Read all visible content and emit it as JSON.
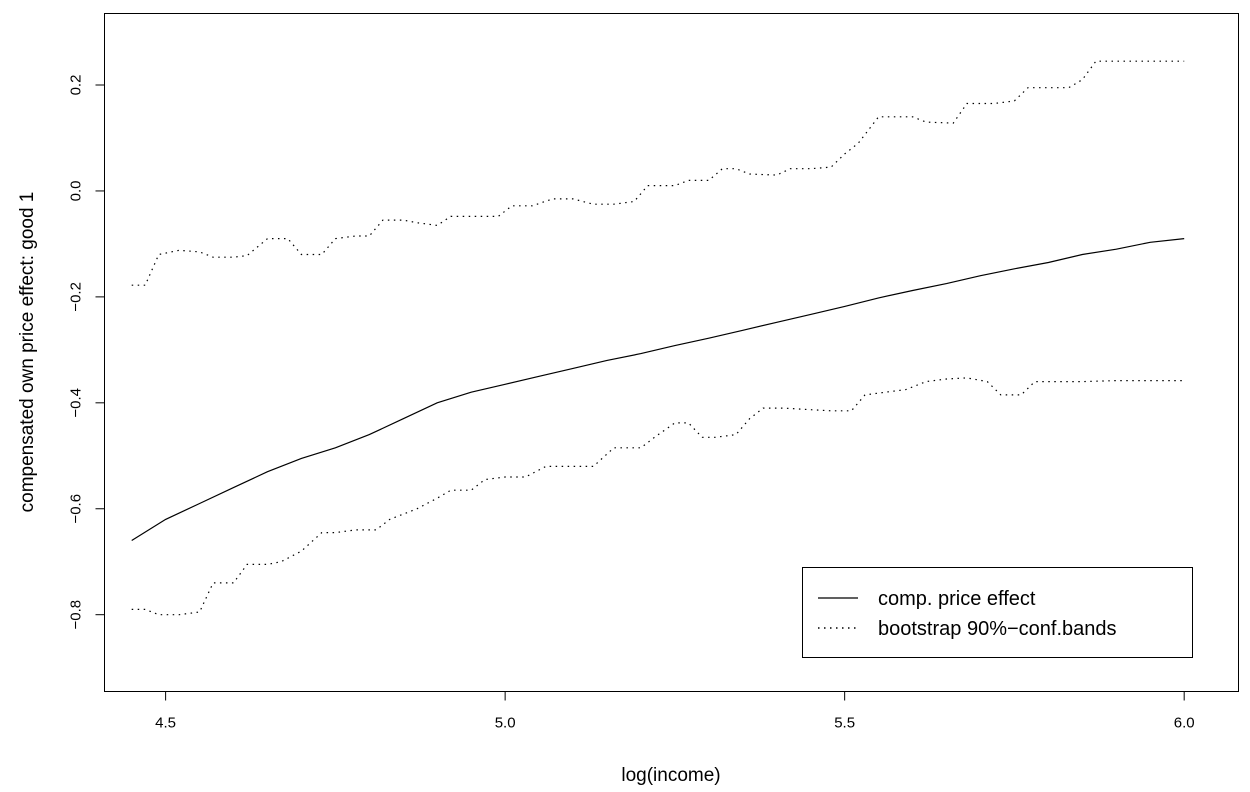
{
  "chart_data": {
    "type": "line",
    "title": "",
    "xlabel": "log(income)",
    "ylabel": "compensated own price effect: good 1",
    "xlim": [
      4.41,
      6.08
    ],
    "ylim": [
      -0.945,
      0.335
    ],
    "x_ticks": [
      4.5,
      5.0,
      5.5,
      6.0
    ],
    "x_tick_labels": [
      "4.5",
      "5.0",
      "5.5",
      "6.0"
    ],
    "y_ticks": [
      -0.8,
      -0.6,
      -0.4,
      -0.2,
      0.0,
      0.2
    ],
    "y_tick_labels": [
      "−0.8",
      "−0.6",
      "−0.4",
      "−0.2",
      "0.0",
      "0.2"
    ],
    "grid": false,
    "legend_position": "bottom-right",
    "series": [
      {
        "name": "comp. price effect",
        "style": "solid",
        "color": "#000000",
        "points": [
          [
            4.45,
            -0.66
          ],
          [
            4.5,
            -0.62
          ],
          [
            4.55,
            -0.59
          ],
          [
            4.6,
            -0.56
          ],
          [
            4.65,
            -0.53
          ],
          [
            4.7,
            -0.505
          ],
          [
            4.75,
            -0.485
          ],
          [
            4.8,
            -0.46
          ],
          [
            4.85,
            -0.43
          ],
          [
            4.9,
            -0.4
          ],
          [
            4.95,
            -0.38
          ],
          [
            5.0,
            -0.365
          ],
          [
            5.05,
            -0.35
          ],
          [
            5.1,
            -0.335
          ],
          [
            5.15,
            -0.32
          ],
          [
            5.2,
            -0.307
          ],
          [
            5.25,
            -0.292
          ],
          [
            5.3,
            -0.278
          ],
          [
            5.35,
            -0.263
          ],
          [
            5.4,
            -0.248
          ],
          [
            5.45,
            -0.233
          ],
          [
            5.5,
            -0.218
          ],
          [
            5.55,
            -0.202
          ],
          [
            5.6,
            -0.188
          ],
          [
            5.65,
            -0.175
          ],
          [
            5.7,
            -0.16
          ],
          [
            5.75,
            -0.147
          ],
          [
            5.8,
            -0.135
          ],
          [
            5.85,
            -0.12
          ],
          [
            5.9,
            -0.11
          ],
          [
            5.95,
            -0.097
          ],
          [
            6.0,
            -0.09
          ]
        ]
      },
      {
        "name": "bootstrap 90%−conf.bands",
        "style": "dotted",
        "color": "#000000",
        "points": [
          [
            4.45,
            -0.178
          ],
          [
            4.47,
            -0.178
          ],
          [
            4.49,
            -0.12
          ],
          [
            4.52,
            -0.112
          ],
          [
            4.55,
            -0.115
          ],
          [
            4.57,
            -0.125
          ],
          [
            4.6,
            -0.125
          ],
          [
            4.62,
            -0.122
          ],
          [
            4.65,
            -0.09
          ],
          [
            4.68,
            -0.09
          ],
          [
            4.7,
            -0.12
          ],
          [
            4.73,
            -0.12
          ],
          [
            4.75,
            -0.09
          ],
          [
            4.78,
            -0.085
          ],
          [
            4.8,
            -0.085
          ],
          [
            4.82,
            -0.055
          ],
          [
            4.85,
            -0.055
          ],
          [
            4.87,
            -0.06
          ],
          [
            4.9,
            -0.065
          ],
          [
            4.92,
            -0.048
          ],
          [
            4.95,
            -0.048
          ],
          [
            4.99,
            -0.048
          ],
          [
            5.01,
            -0.028
          ],
          [
            5.04,
            -0.028
          ],
          [
            5.07,
            -0.015
          ],
          [
            5.1,
            -0.015
          ],
          [
            5.13,
            -0.025
          ],
          [
            5.16,
            -0.025
          ],
          [
            5.19,
            -0.02
          ],
          [
            5.21,
            0.01
          ],
          [
            5.25,
            0.01
          ],
          [
            5.27,
            0.02
          ],
          [
            5.3,
            0.02
          ],
          [
            5.32,
            0.042
          ],
          [
            5.34,
            0.042
          ],
          [
            5.36,
            0.032
          ],
          [
            5.4,
            0.03
          ],
          [
            5.42,
            0.042
          ],
          [
            5.45,
            0.042
          ],
          [
            5.48,
            0.045
          ],
          [
            5.5,
            0.07
          ],
          [
            5.52,
            0.09
          ],
          [
            5.55,
            0.14
          ],
          [
            5.6,
            0.14
          ],
          [
            5.62,
            0.13
          ],
          [
            5.66,
            0.128
          ],
          [
            5.68,
            0.165
          ],
          [
            5.72,
            0.165
          ],
          [
            5.75,
            0.17
          ],
          [
            5.77,
            0.195
          ],
          [
            5.8,
            0.195
          ],
          [
            5.83,
            0.195
          ],
          [
            5.85,
            0.21
          ],
          [
            5.87,
            0.245
          ],
          [
            5.9,
            0.245
          ],
          [
            5.93,
            0.245
          ],
          [
            5.95,
            0.245
          ],
          [
            6.0,
            0.245
          ]
        ]
      },
      {
        "name": "",
        "style": "dotted",
        "color": "#000000",
        "points": [
          [
            4.45,
            -0.79
          ],
          [
            4.47,
            -0.79
          ],
          [
            4.49,
            -0.8
          ],
          [
            4.52,
            -0.8
          ],
          [
            4.55,
            -0.795
          ],
          [
            4.57,
            -0.74
          ],
          [
            4.6,
            -0.74
          ],
          [
            4.62,
            -0.705
          ],
          [
            4.65,
            -0.705
          ],
          [
            4.67,
            -0.7
          ],
          [
            4.7,
            -0.68
          ],
          [
            4.73,
            -0.645
          ],
          [
            4.75,
            -0.645
          ],
          [
            4.78,
            -0.64
          ],
          [
            4.81,
            -0.64
          ],
          [
            4.83,
            -0.62
          ],
          [
            4.85,
            -0.61
          ],
          [
            4.87,
            -0.6
          ],
          [
            4.9,
            -0.58
          ],
          [
            4.92,
            -0.565
          ],
          [
            4.95,
            -0.565
          ],
          [
            4.97,
            -0.545
          ],
          [
            5.0,
            -0.54
          ],
          [
            5.03,
            -0.54
          ],
          [
            5.06,
            -0.52
          ],
          [
            5.1,
            -0.52
          ],
          [
            5.13,
            -0.52
          ],
          [
            5.16,
            -0.485
          ],
          [
            5.2,
            -0.485
          ],
          [
            5.22,
            -0.465
          ],
          [
            5.25,
            -0.438
          ],
          [
            5.27,
            -0.438
          ],
          [
            5.29,
            -0.465
          ],
          [
            5.31,
            -0.465
          ],
          [
            5.34,
            -0.46
          ],
          [
            5.36,
            -0.43
          ],
          [
            5.38,
            -0.41
          ],
          [
            5.41,
            -0.41
          ],
          [
            5.45,
            -0.413
          ],
          [
            5.48,
            -0.415
          ],
          [
            5.51,
            -0.415
          ],
          [
            5.53,
            -0.385
          ],
          [
            5.56,
            -0.38
          ],
          [
            5.59,
            -0.375
          ],
          [
            5.62,
            -0.36
          ],
          [
            5.65,
            -0.355
          ],
          [
            5.68,
            -0.353
          ],
          [
            5.71,
            -0.36
          ],
          [
            5.73,
            -0.385
          ],
          [
            5.76,
            -0.385
          ],
          [
            5.78,
            -0.36
          ],
          [
            5.81,
            -0.36
          ],
          [
            5.85,
            -0.36
          ],
          [
            5.9,
            -0.358
          ],
          [
            5.95,
            -0.358
          ],
          [
            6.0,
            -0.358
          ]
        ]
      }
    ]
  }
}
